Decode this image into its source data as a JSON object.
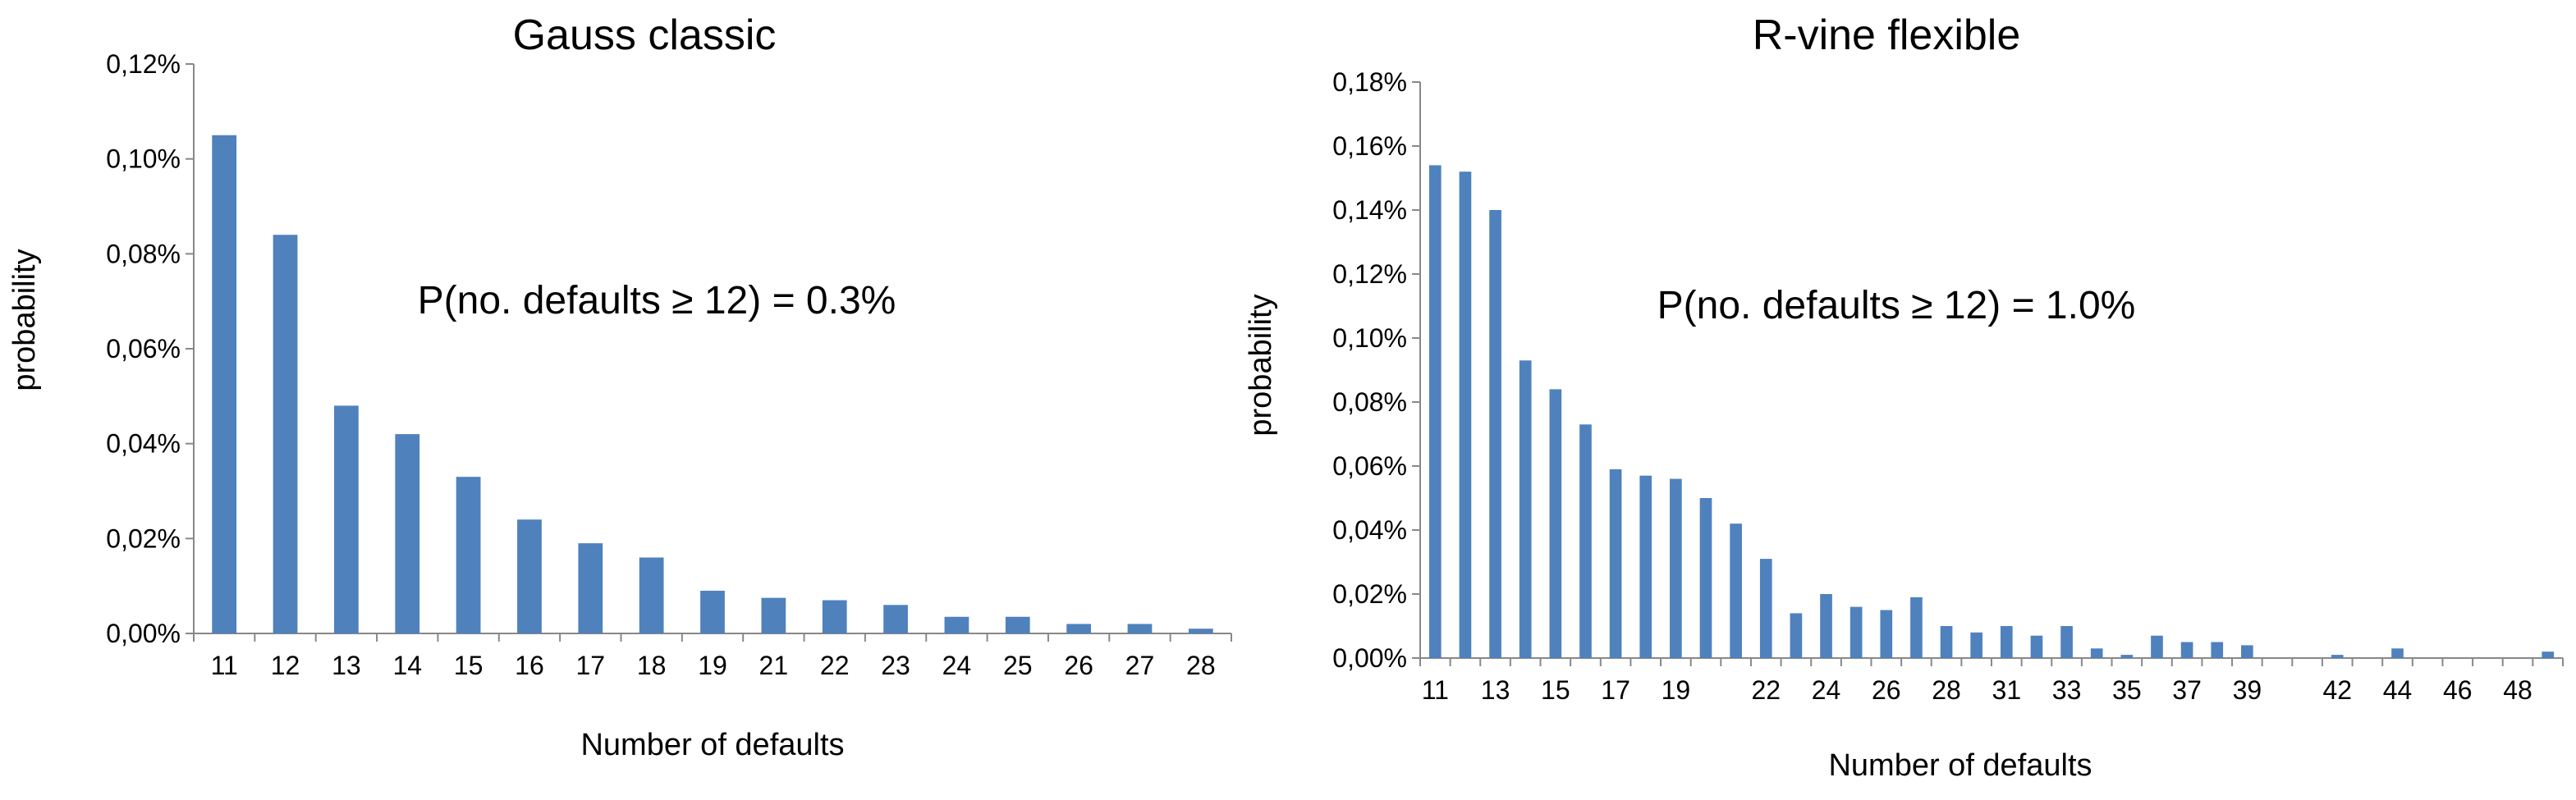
{
  "colors": {
    "bar": "#4f81bd",
    "axis": "#888888",
    "text": "#000000"
  },
  "chart_data": [
    {
      "type": "bar",
      "title": "Gauss classic",
      "xlabel": "Number of defaults",
      "ylabel": "probability",
      "annotation": "P(no. defaults ≥ 12) = 0.3%",
      "ylim": [
        0,
        0.12
      ],
      "y_ticks": [
        "0,00%",
        "0,02%",
        "0,04%",
        "0,06%",
        "0,08%",
        "0,10%",
        "0,12%"
      ],
      "categories": [
        "11",
        "12",
        "13",
        "14",
        "15",
        "16",
        "17",
        "18",
        "19",
        "21",
        "22",
        "23",
        "24",
        "25",
        "26",
        "27",
        "28"
      ],
      "x_tick_labels": [
        "11",
        "12",
        "13",
        "14",
        "15",
        "16",
        "17",
        "18",
        "19",
        "21",
        "22",
        "23",
        "24",
        "25",
        "26",
        "27",
        "28"
      ],
      "values": [
        0.105,
        0.084,
        0.048,
        0.042,
        0.033,
        0.024,
        0.019,
        0.016,
        0.009,
        0.0075,
        0.007,
        0.006,
        0.0035,
        0.0035,
        0.002,
        0.002,
        0.001
      ],
      "grid": false,
      "legend": "none"
    },
    {
      "type": "bar",
      "title": "R-vine flexible",
      "xlabel": "Number of defaults",
      "ylabel": "probability",
      "annotation": "P(no. defaults ≥ 12) = 1.0%",
      "ylim": [
        0,
        0.18
      ],
      "y_ticks": [
        "0,00%",
        "0,02%",
        "0,04%",
        "0,06%",
        "0,08%",
        "0,10%",
        "0,12%",
        "0,14%",
        "0,16%",
        "0,18%"
      ],
      "categories": [
        "11",
        "12",
        "13",
        "14",
        "15",
        "16",
        "17",
        "18",
        "19",
        "20",
        "21",
        "22",
        "23",
        "24",
        "25",
        "26",
        "27",
        "28",
        "30",
        "31",
        "32",
        "33",
        "34",
        "35",
        "36",
        "37",
        "38",
        "39",
        "40",
        "41",
        "42",
        "43",
        "44",
        "45",
        "46",
        "47",
        "48",
        "50"
      ],
      "x_tick_labels": [
        "11",
        "13",
        "15",
        "17",
        "19",
        "22",
        "24",
        "26",
        "28",
        "31",
        "33",
        "35",
        "37",
        "39",
        "42",
        "44",
        "46",
        "48"
      ],
      "values": [
        0.154,
        0.152,
        0.14,
        0.093,
        0.084,
        0.073,
        0.059,
        0.057,
        0.056,
        0.05,
        0.042,
        0.031,
        0.014,
        0.02,
        0.016,
        0.015,
        0.019,
        0.01,
        0.008,
        0.01,
        0.007,
        0.01,
        0.003,
        0.001,
        0.007,
        0.005,
        0.005,
        0.004,
        0,
        0,
        0.001,
        0,
        0.003,
        0,
        0,
        0,
        0,
        0.002
      ],
      "grid": false,
      "legend": "none"
    }
  ]
}
